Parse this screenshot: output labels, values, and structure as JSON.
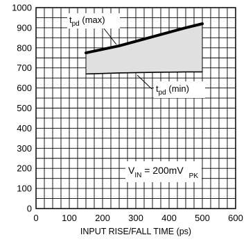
{
  "chart_data": {
    "type": "area",
    "title": "",
    "xlabel": "INPUT RISE/FALL TIME (ps)",
    "ylabel": "",
    "xlim": [
      0,
      600
    ],
    "ylim": [
      0,
      1000
    ],
    "x_ticks": [
      "0",
      "100",
      "200",
      "300",
      "400",
      "500",
      "600"
    ],
    "y_ticks": [
      "0",
      "100",
      "200",
      "300",
      "400",
      "500",
      "600",
      "700",
      "800",
      "900",
      "1000"
    ],
    "grid": true,
    "series": [
      {
        "name": "t_pd (max)",
        "x": [
          150,
          250,
          350,
          450,
          500
        ],
        "y": [
          775,
          810,
          855,
          900,
          920
        ]
      },
      {
        "name": "t_pd (min)",
        "x": [
          150,
          250,
          350,
          450,
          500
        ],
        "y": [
          670,
          675,
          678,
          680,
          680
        ]
      }
    ],
    "fill_between": {
      "upper": "t_pd (max)",
      "lower": "t_pd (min)",
      "color": "#e0e0e0"
    },
    "annotations": {
      "tpd_max": {
        "main": "t",
        "sub": "pd",
        "rest": " (max)"
      },
      "tpd_min": {
        "main": "t",
        "sub": "pd",
        "rest": " (min)"
      },
      "vin": {
        "main": "V",
        "sub": "IN",
        "rest": " = 200mV",
        "sub2": "PK"
      }
    }
  }
}
